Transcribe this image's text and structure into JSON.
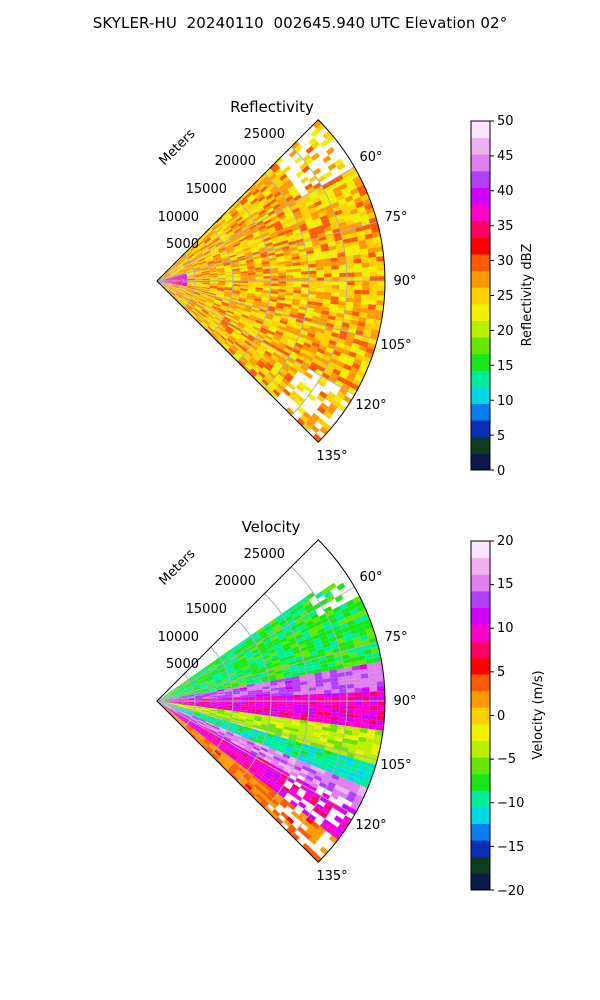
{
  "suptitle": "SKYLER-HU  20240110  002645.940 UTC Elevation 02°",
  "chart_data": [
    {
      "type": "heatmap",
      "projection": "polar-sector",
      "title": "Reflectivity",
      "radial_label": "Meters",
      "radial_ticks": [
        "5000",
        "10000",
        "15000",
        "20000",
        "25000"
      ],
      "radial_tick_values": [
        5000,
        10000,
        15000,
        20000,
        25000
      ],
      "radial_range": [
        0,
        30000
      ],
      "azimuth_range_deg": [
        45,
        135
      ],
      "azimuth_ticks": [
        "60°",
        "75°",
        "90°",
        "105°",
        "120°",
        "135°"
      ],
      "azimuth_tick_values": [
        60,
        75,
        90,
        105,
        120,
        135
      ],
      "grid": true,
      "colorbar": {
        "label": "Reflectivity dBZ",
        "range": [
          0,
          50
        ],
        "ticks": [
          "0",
          "5",
          "10",
          "15",
          "20",
          "25",
          "30",
          "35",
          "40",
          "45",
          "50"
        ],
        "colors": [
          "#0a1a4a",
          "#0b3d1e",
          "#0a2eb4",
          "#0a7df0",
          "#00d8e8",
          "#00ee9a",
          "#19e619",
          "#66e600",
          "#b8f000",
          "#f0f000",
          "#ffd000",
          "#ff9a00",
          "#ff5a00",
          "#ff0000",
          "#ff0066",
          "#ff00cc",
          "#d400ff",
          "#b040ff",
          "#e080f0",
          "#f0b0f0",
          "#fbe4fb"
        ]
      },
      "field": {
        "description_values_by_range": [
          {
            "range_m": [
              0,
              4500
            ],
            "az_deg": [
              75,
              100
            ],
            "value": 37
          },
          {
            "range_m": [
              0,
              30000
            ],
            "az_deg": [
              45,
              135
            ],
            "value": 26
          }
        ]
      }
    },
    {
      "type": "heatmap",
      "projection": "polar-sector",
      "title": "Velocity",
      "radial_label": "Meters",
      "radial_ticks": [
        "5000",
        "10000",
        "15000",
        "20000",
        "25000"
      ],
      "radial_tick_values": [
        5000,
        10000,
        15000,
        20000,
        25000
      ],
      "radial_range": [
        0,
        30000
      ],
      "azimuth_range_deg": [
        45,
        135
      ],
      "azimuth_ticks": [
        "60°",
        "75°",
        "90°",
        "105°",
        "120°",
        "135°"
      ],
      "azimuth_tick_values": [
        60,
        75,
        90,
        105,
        120,
        135
      ],
      "grid": true,
      "colorbar": {
        "label": "Velocity (m/s)",
        "range": [
          -20,
          20
        ],
        "ticks": [
          "−20",
          "−15",
          "−10",
          "−5",
          "0",
          "5",
          "10",
          "15",
          "20"
        ],
        "colors": [
          "#0a1a4a",
          "#0b3d1e",
          "#0a2eb4",
          "#0a7df0",
          "#00d8e8",
          "#00ee9a",
          "#19e619",
          "#66e600",
          "#b8f000",
          "#f0f000",
          "#ffd000",
          "#ff9a00",
          "#ff5a00",
          "#ff0000",
          "#ff0066",
          "#ff00cc",
          "#d400ff",
          "#b040ff",
          "#e080f0",
          "#f0b0f0",
          "#fbe4fb"
        ]
      },
      "field": {
        "bands_by_azimuth": [
          {
            "az_deg": [
              55,
              80
            ],
            "value": -8
          },
          {
            "az_deg": [
              80,
              88
            ],
            "value": 14
          },
          {
            "az_deg": [
              88,
              97
            ],
            "value": 10
          },
          {
            "az_deg": [
              97,
              106
            ],
            "value": -4
          },
          {
            "az_deg": [
              106,
              113
            ],
            "value": -10
          },
          {
            "az_deg": [
              113,
              119
            ],
            "value": 15
          },
          {
            "az_deg": [
              119,
              127
            ],
            "value": 10
          },
          {
            "az_deg": [
              127,
              135
            ],
            "value": 3
          }
        ]
      }
    }
  ]
}
